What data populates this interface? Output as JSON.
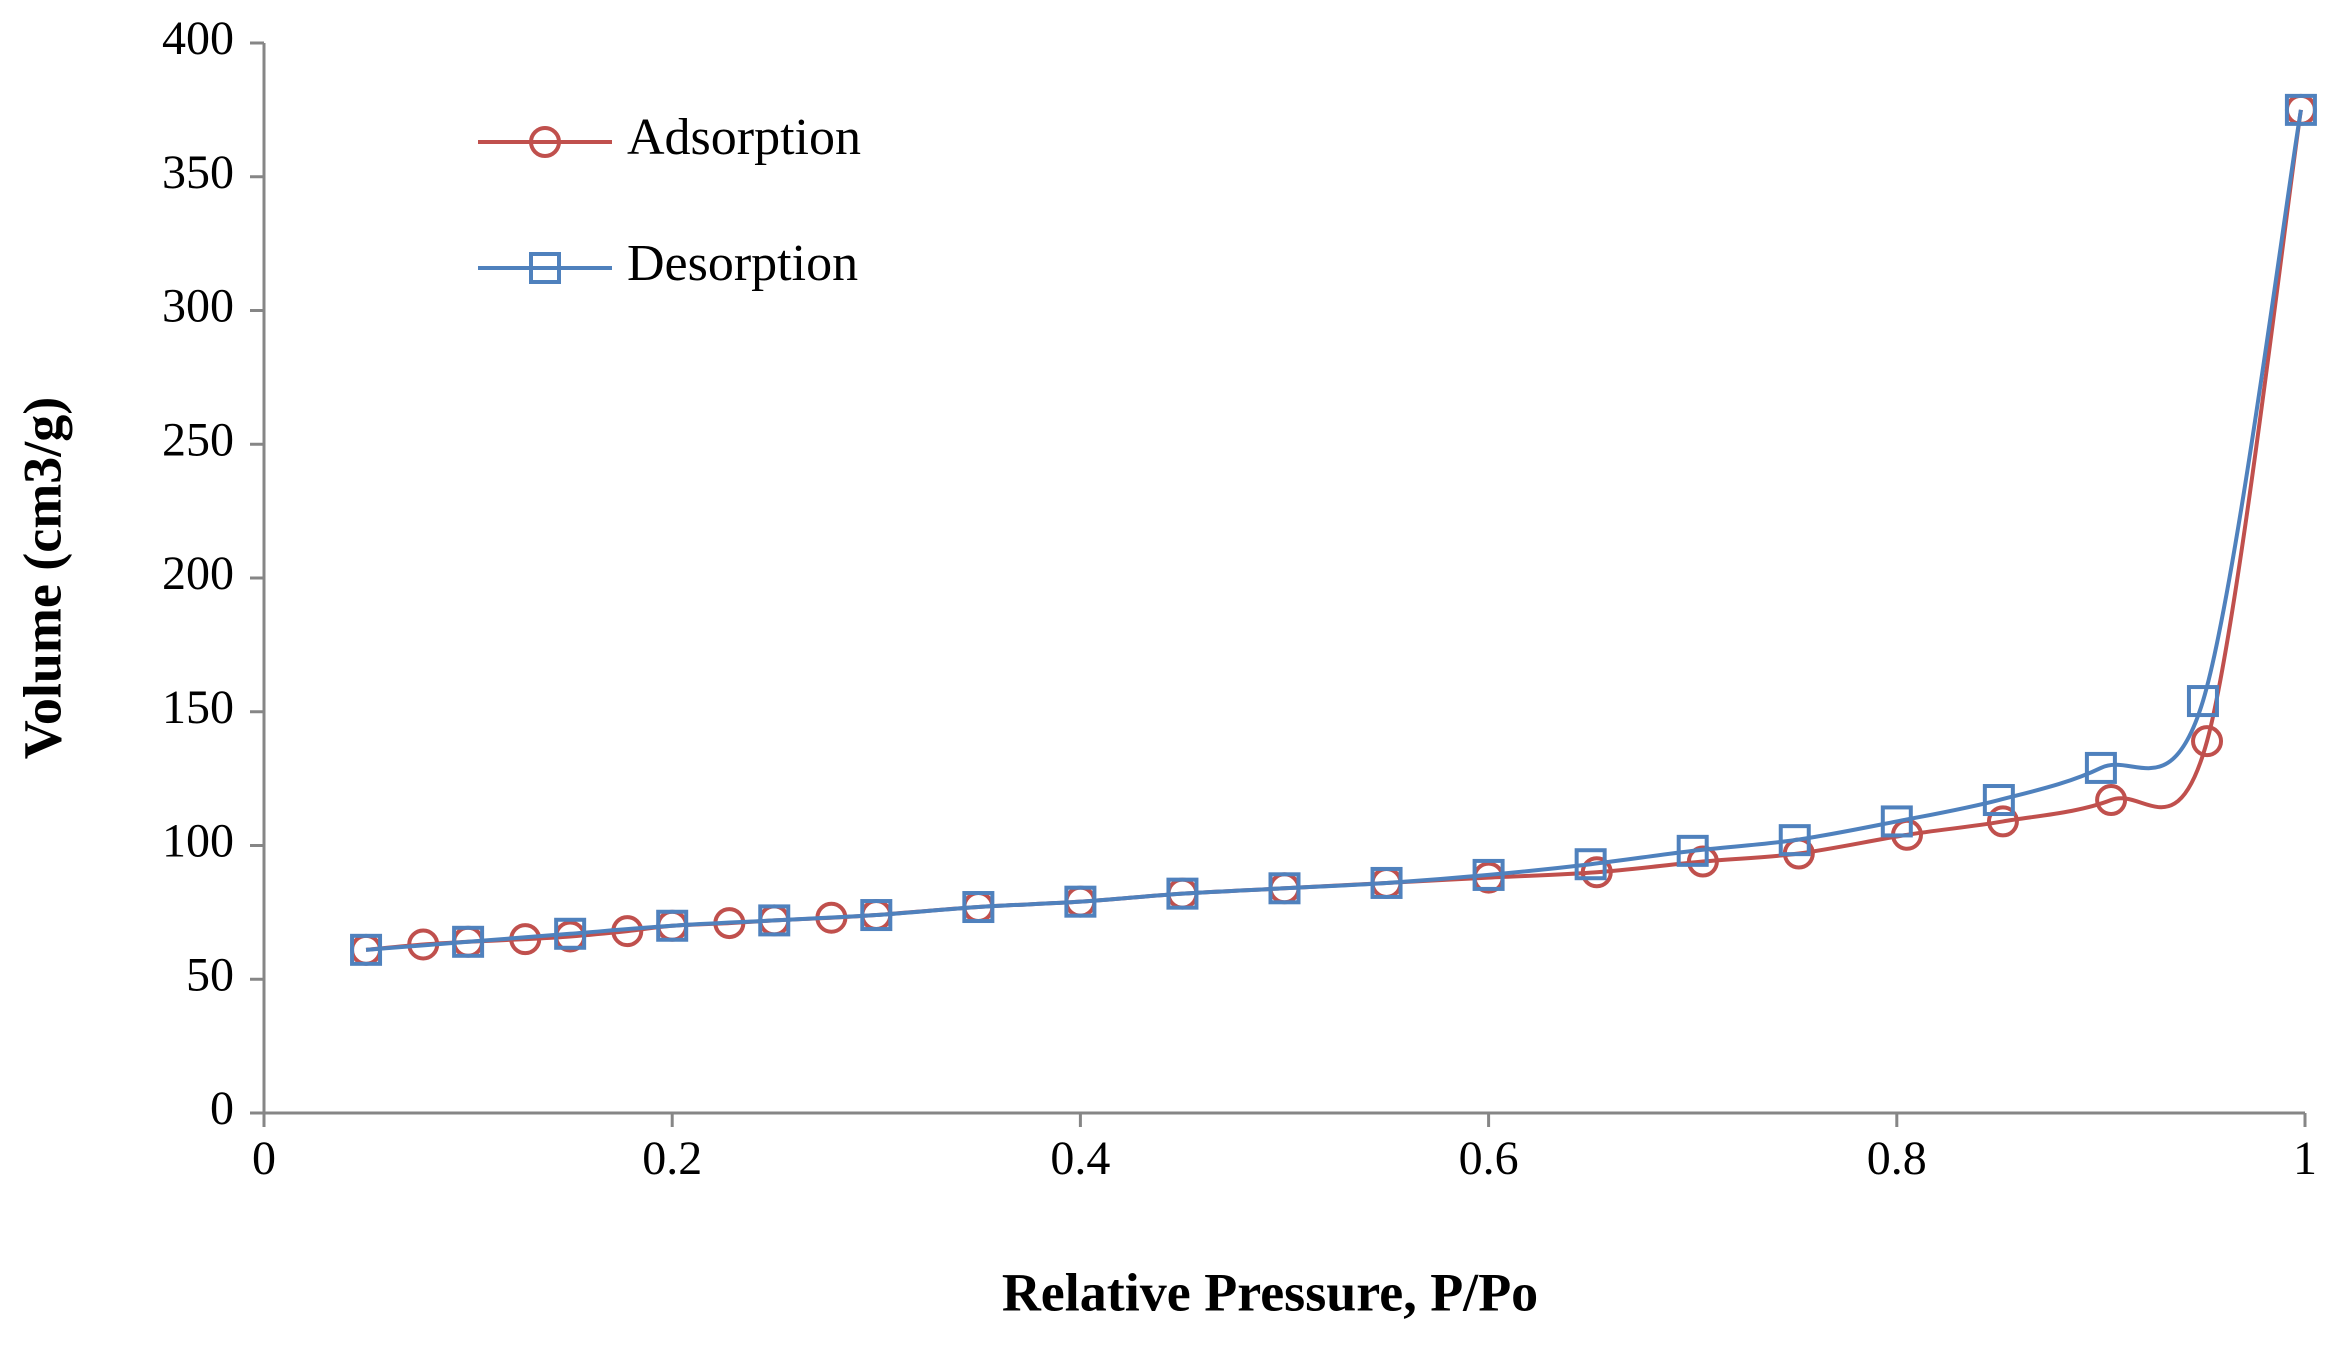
{
  "chart_data": {
    "type": "line",
    "xlabel": "Relative Pressure, P/Po",
    "ylabel": "Volume (cm3/g)",
    "xlim": [
      0,
      1
    ],
    "xticks": [
      0,
      0.2,
      0.4,
      0.6,
      0.8,
      1
    ],
    "ylim": [
      0,
      400
    ],
    "yticks": [
      0,
      50,
      100,
      150,
      200,
      250,
      300,
      350,
      400
    ],
    "legend": "upper left",
    "series": [
      {
        "name": "Adsorption",
        "color": "#c0504d",
        "marker": "circle",
        "x": [
          0.05,
          0.078,
          0.1,
          0.128,
          0.15,
          0.178,
          0.2,
          0.228,
          0.25,
          0.278,
          0.3,
          0.35,
          0.4,
          0.45,
          0.5,
          0.55,
          0.6,
          0.653,
          0.705,
          0.752,
          0.805,
          0.852,
          0.905,
          0.952,
          0.998
        ],
        "values": [
          61,
          63,
          64,
          65,
          66,
          68,
          70,
          71,
          72,
          73,
          74,
          77,
          79,
          82,
          84,
          86,
          88,
          90,
          94,
          97,
          104,
          109,
          117,
          139,
          375
        ]
      },
      {
        "name": "Desorption",
        "color": "#4f81bd",
        "marker": "square",
        "x": [
          0.05,
          0.1,
          0.15,
          0.2,
          0.25,
          0.3,
          0.35,
          0.4,
          0.45,
          0.5,
          0.55,
          0.6,
          0.65,
          0.7,
          0.75,
          0.8,
          0.85,
          0.9,
          0.95,
          0.998
        ],
        "values": [
          61,
          64,
          67,
          70,
          72,
          74,
          77,
          79,
          82,
          84,
          86,
          89,
          93,
          98,
          102,
          109,
          117,
          129,
          154,
          375
        ]
      }
    ]
  }
}
